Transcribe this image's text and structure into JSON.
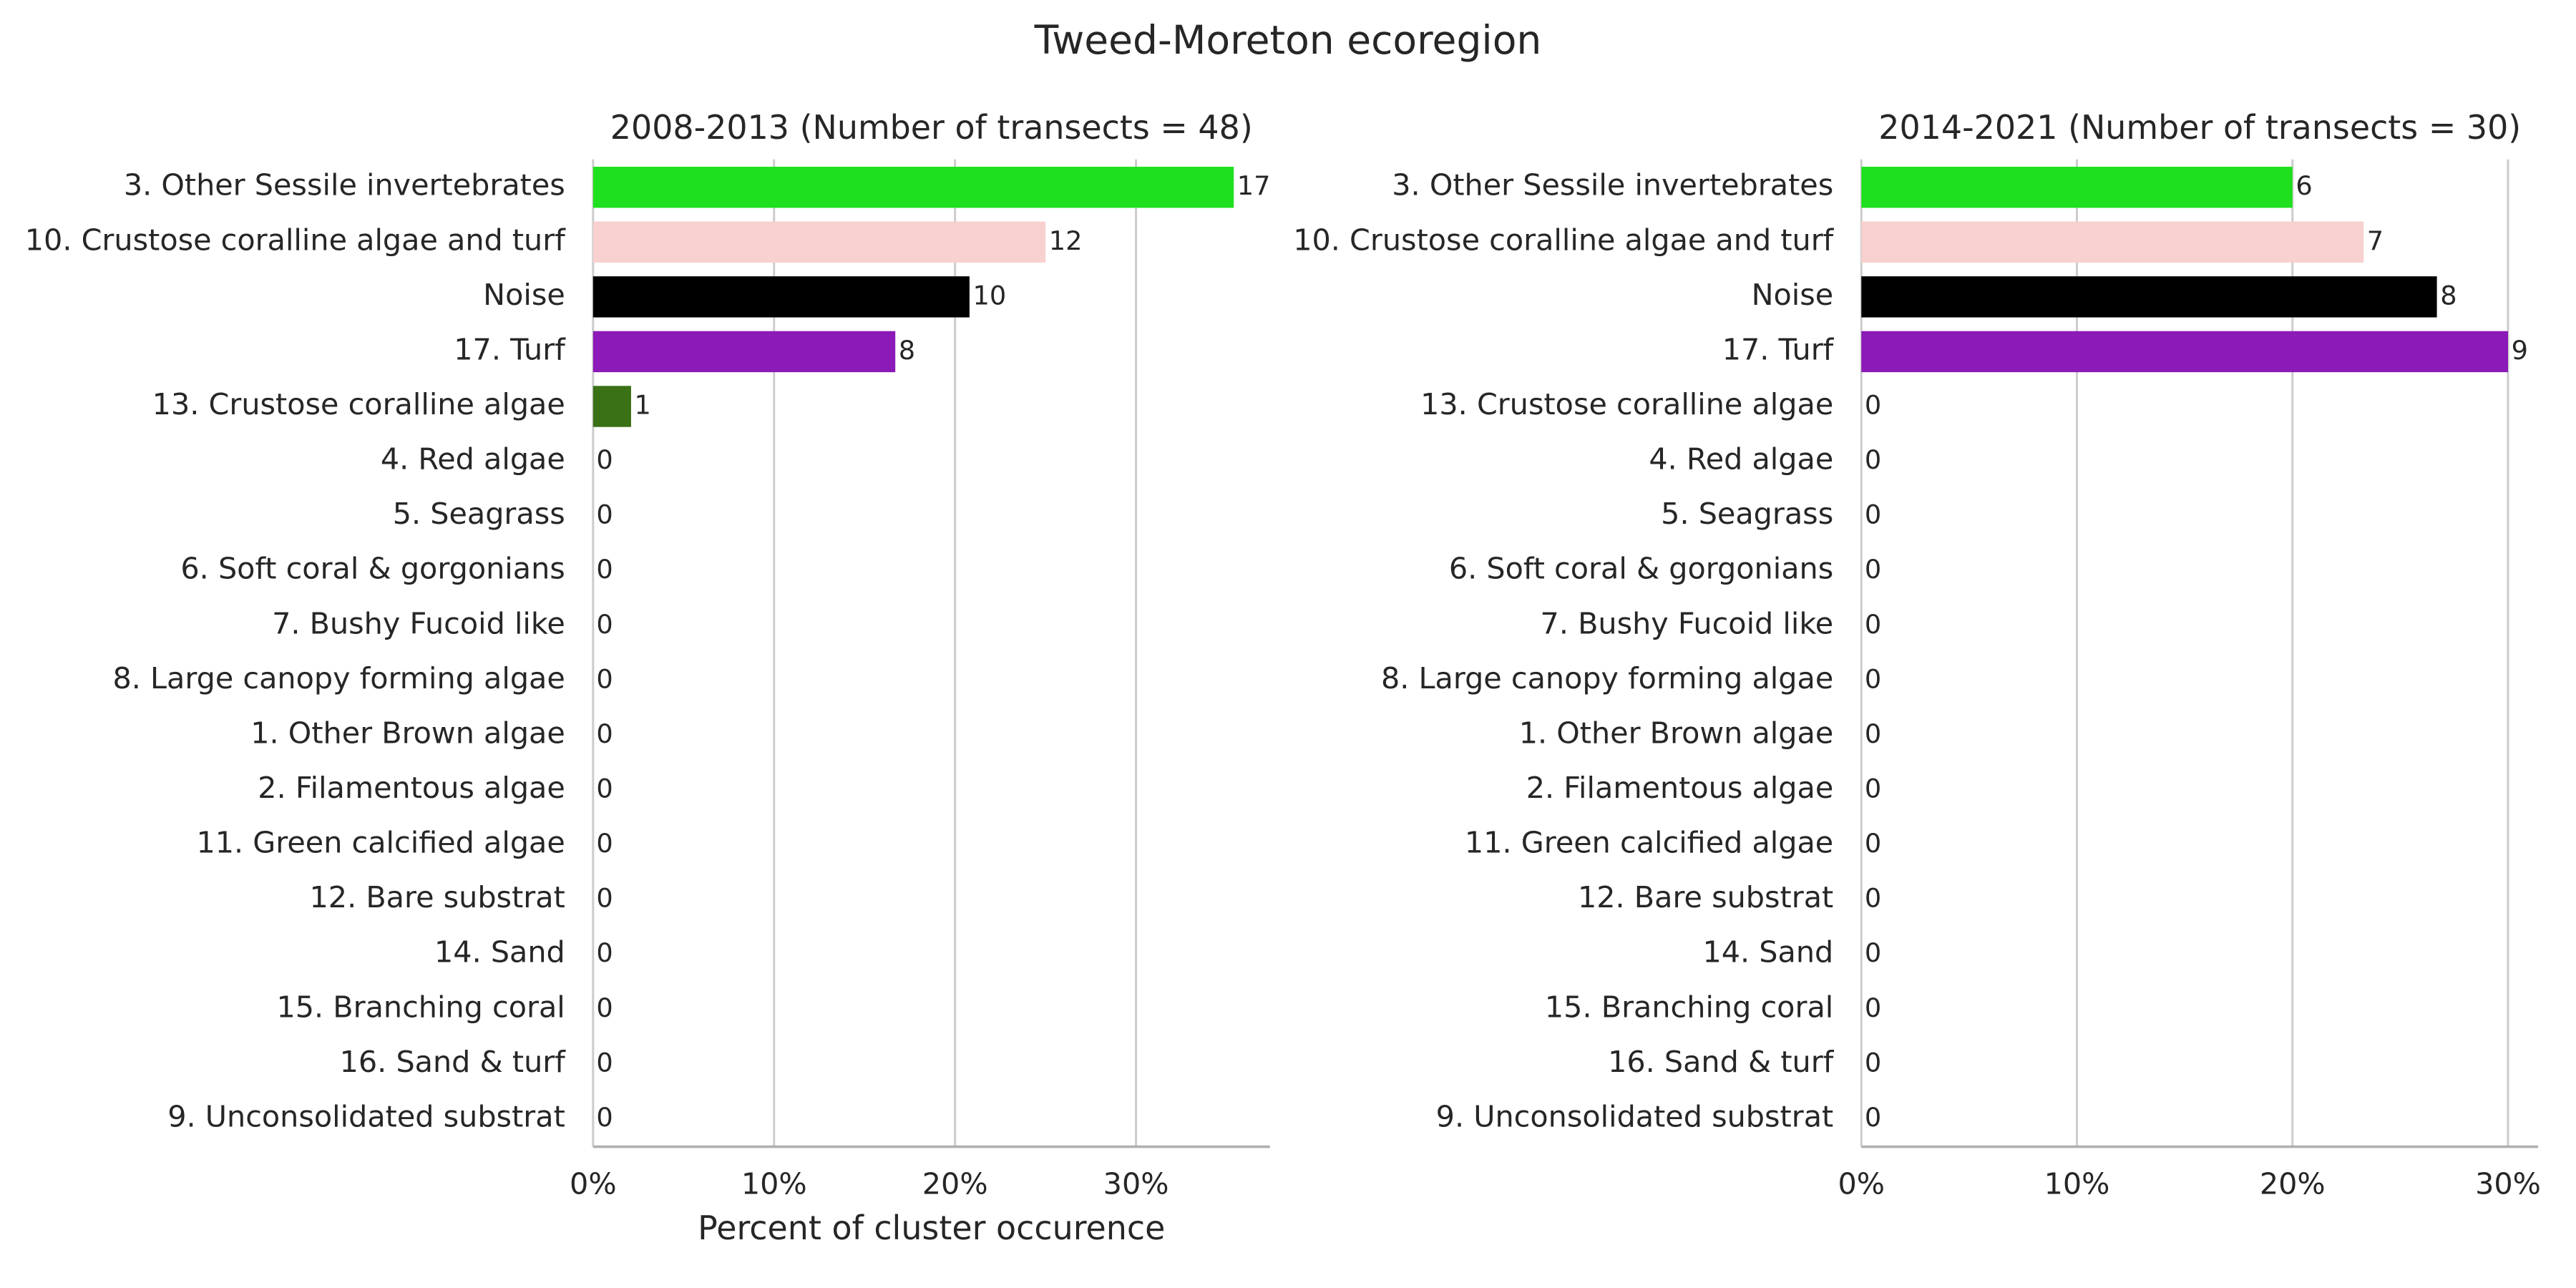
{
  "title": "Tweed-Moreton ecoregion",
  "chart_data": [
    {
      "type": "barh",
      "title": "2008-2013 (Number of transects = 48)",
      "xlabel": "Percent of cluster occurence",
      "categories": [
        "3. Other Sessile invertebrates",
        "10. Crustose coralline algae and turf",
        "Noise",
        "17. Turf",
        "13. Crustose coralline algae",
        "4. Red algae",
        "5. Seagrass",
        "6. Soft coral & gorgonians",
        "7. Bushy Fucoid like",
        "8. Large canopy forming algae",
        "1. Other Brown algae",
        "2. Filamentous algae",
        "11. Green calcified algae",
        "12. Bare substrat",
        "14. Sand",
        "15. Branching coral",
        "16. Sand & turf",
        "9. Unconsolidated substrat"
      ],
      "values": [
        35.4,
        25,
        20.8,
        16.7,
        2.1,
        0,
        0,
        0,
        0,
        0,
        0,
        0,
        0,
        0,
        0,
        0,
        0,
        0
      ],
      "counts": [
        17,
        12,
        10,
        8,
        1,
        0,
        0,
        0,
        0,
        0,
        0,
        0,
        0,
        0,
        0,
        0,
        0,
        0
      ],
      "colors": [
        "#1ee01e",
        "#f8d0d0",
        "#000000",
        "#8b1ab8",
        "#3a7016",
        null,
        null,
        null,
        null,
        null,
        null,
        null,
        null,
        null,
        null,
        null,
        null,
        null
      ],
      "xlim": [
        0,
        37.4
      ],
      "xticks": [
        {
          "value": 0,
          "label": "0%"
        },
        {
          "value": 10,
          "label": "10%"
        },
        {
          "value": 20,
          "label": "20%"
        },
        {
          "value": 30,
          "label": "30%"
        }
      ],
      "grid": true
    },
    {
      "type": "barh",
      "title": "2014-2021 (Number of transects = 30)",
      "categories": [
        "3. Other Sessile invertebrates",
        "10. Crustose coralline algae and turf",
        "Noise",
        "17. Turf",
        "13. Crustose coralline algae",
        "4. Red algae",
        "5. Seagrass",
        "6. Soft coral & gorgonians",
        "7. Bushy Fucoid like",
        "8. Large canopy forming algae",
        "1. Other Brown algae",
        "2. Filamentous algae",
        "11. Green calcified algae",
        "12. Bare substrat",
        "14. Sand",
        "15. Branching coral",
        "16. Sand & turf",
        "9. Unconsolidated substrat"
      ],
      "values": [
        20,
        23.3,
        26.7,
        30,
        0,
        0,
        0,
        0,
        0,
        0,
        0,
        0,
        0,
        0,
        0,
        0,
        0,
        0
      ],
      "counts": [
        6,
        7,
        8,
        9,
        0,
        0,
        0,
        0,
        0,
        0,
        0,
        0,
        0,
        0,
        0,
        0,
        0,
        0
      ],
      "colors": [
        "#1ee01e",
        "#f8d0d0",
        "#000000",
        "#8b1ab8",
        null,
        null,
        null,
        null,
        null,
        null,
        null,
        null,
        null,
        null,
        null,
        null,
        null,
        null
      ],
      "xlim": [
        0,
        31.4
      ],
      "xticks": [
        {
          "value": 0,
          "label": "0%"
        },
        {
          "value": 10,
          "label": "10%"
        },
        {
          "value": 20,
          "label": "20%"
        },
        {
          "value": 30,
          "label": "30%"
        }
      ],
      "grid": true
    }
  ]
}
